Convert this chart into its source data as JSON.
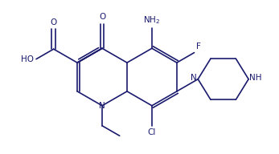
{
  "line_color": "#1a1a6e",
  "bg_color": "#ffffff",
  "text_color": "#1a1a6e",
  "font_size": 6.5,
  "fig_width": 3.47,
  "fig_height": 1.92,
  "dpi": 100,
  "lw": 1.2,
  "xlim": [
    -1.5,
    11.0
  ],
  "ylim": [
    -2.5,
    5.5
  ]
}
